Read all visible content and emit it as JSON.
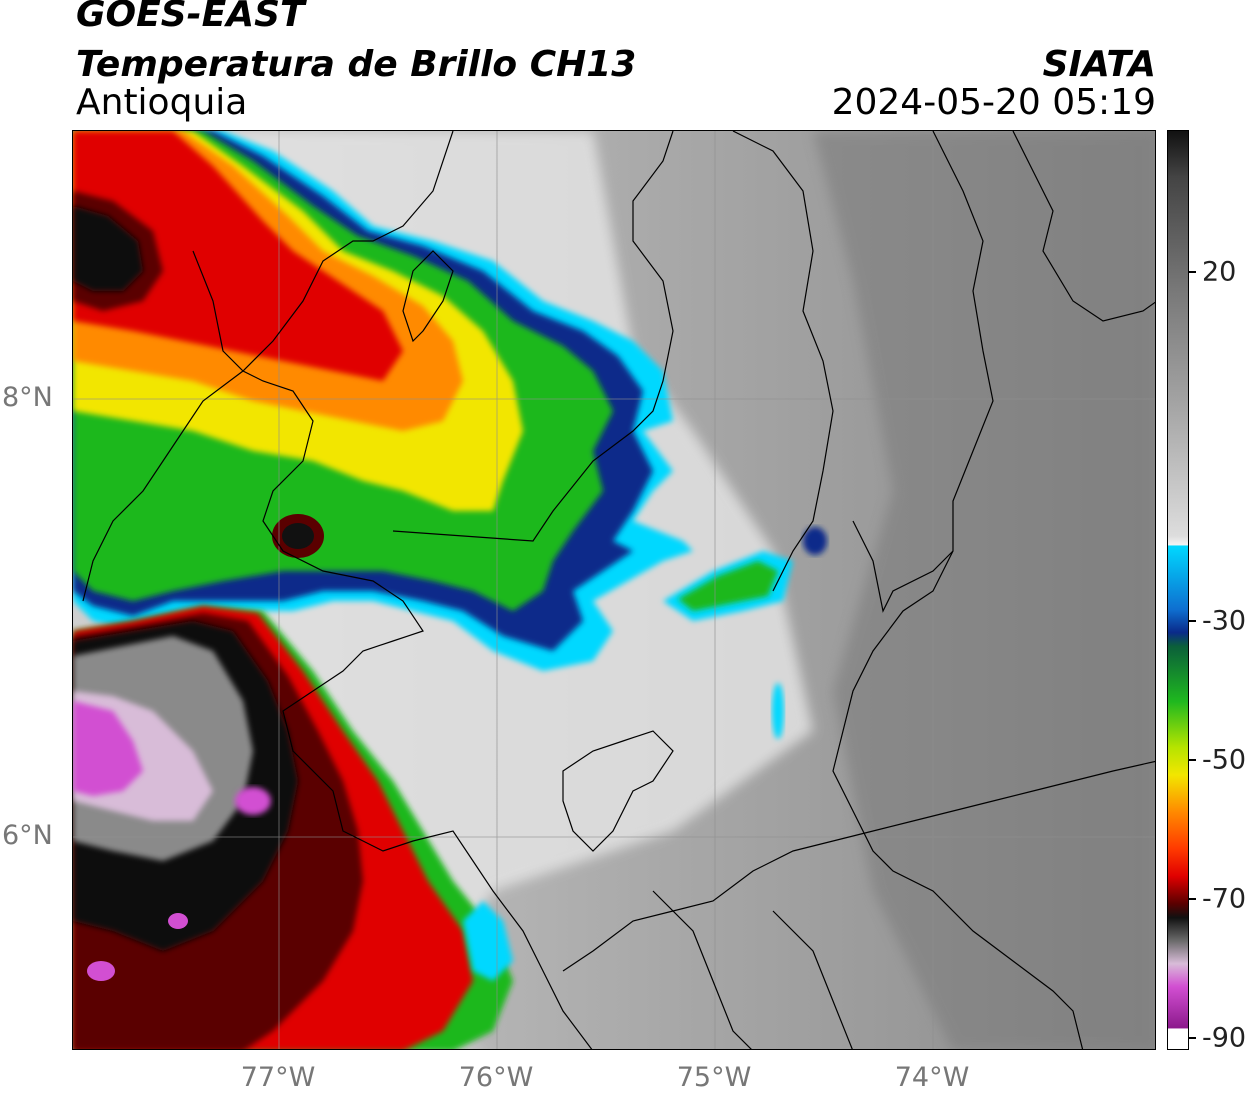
{
  "header": {
    "satellite": "GOES-EAST",
    "product": "Temperatura de Brillo CH13",
    "region": "Antioquia",
    "organization": "SIATA",
    "timestamp": "2024-05-20 05:19"
  },
  "axes": {
    "lat_ticks": [
      "8°N",
      "6°N"
    ],
    "lon_ticks": [
      "77°W",
      "76°W",
      "75°W",
      "74°W"
    ]
  },
  "colorbar": {
    "labels": [
      "20",
      "-30",
      "-50",
      "-70",
      "-90"
    ],
    "colors": {
      "warm_gray": "#888888",
      "white": "#f4f4f4",
      "cyan": "#00d8ff",
      "blue": "#0a2a8a",
      "green": "#1fb81f",
      "yellow": "#f2e600",
      "orange": "#ff8a00",
      "red": "#e00000",
      "dark_red": "#5a0000",
      "black": "#111111",
      "magenta": "#d24fd2",
      "purple": "#8c1a8c"
    }
  }
}
